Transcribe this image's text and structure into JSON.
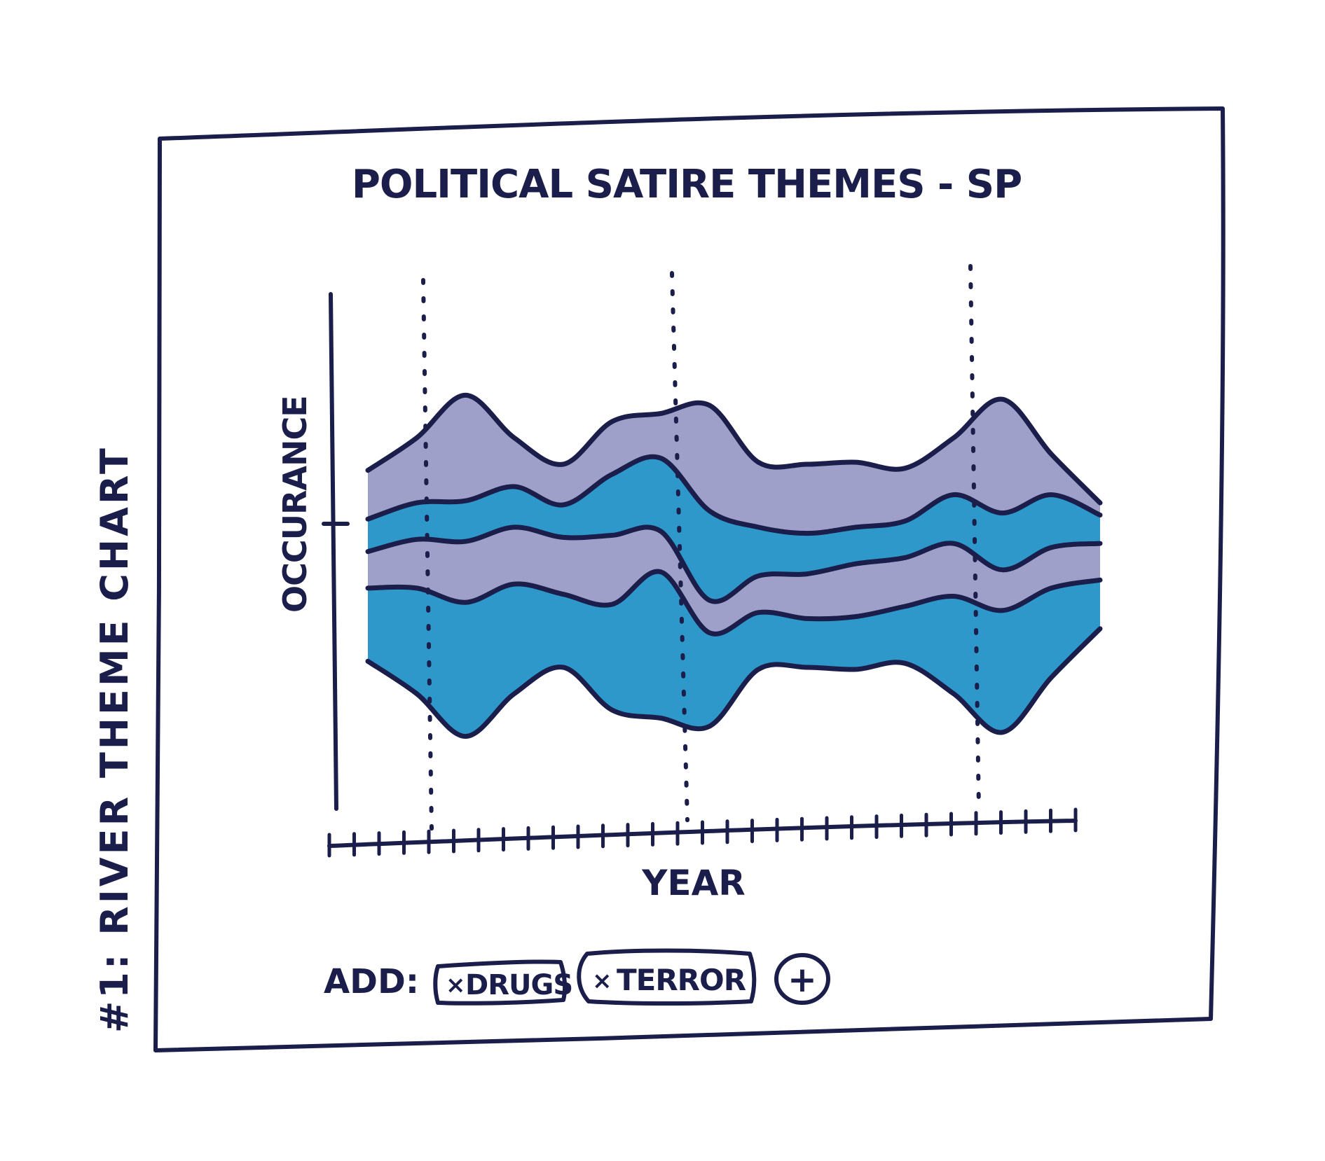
{
  "side_title": "#1: RIVER THEME CHART",
  "chart_title": "POLITICAL SATIRE THEMES - SP",
  "y_label": "OCCURANCE",
  "x_label": "YEAR",
  "add_label": "ADD:",
  "chips": [
    {
      "label": "DRUGS",
      "remove_glyph": "×"
    },
    {
      "label": "TERROR",
      "remove_glyph": "×"
    }
  ],
  "add_button_glyph": "+",
  "colors": {
    "ink": "#1b1e4b",
    "teal": "#1b8fc4",
    "lavender": "#8e8fc0",
    "light": "#aab4d8"
  },
  "chart_data": {
    "type": "area",
    "stacking": "streamgraph",
    "xlabel": "YEAR",
    "ylabel": "OCCURANCE",
    "title": "POLITICAL SATIRE THEMES - SP",
    "x_ticks": 30,
    "highlight_ticks": [
      4,
      14,
      26
    ],
    "x": [
      0,
      2,
      4,
      6,
      8,
      10,
      12,
      14,
      16,
      18,
      20,
      22,
      24,
      26,
      28,
      30
    ],
    "series": [
      {
        "color": "lavender",
        "values": [
          1.2,
          1.6,
          2.6,
          1.2,
          1.0,
          1.3,
          1.1,
          2.6,
          1.6,
          1.7,
          1.6,
          1.3,
          1.4,
          2.8,
          1.0,
          0.3
        ]
      },
      {
        "color": "teal",
        "values": [
          0.8,
          0.9,
          1.0,
          1.0,
          0.8,
          1.5,
          1.8,
          2.2,
          1.2,
          1.0,
          0.9,
          0.9,
          1.2,
          1.4,
          1.3,
          0.7
        ]
      },
      {
        "color": "lavender",
        "values": [
          0.9,
          1.2,
          1.5,
          1.4,
          1.4,
          1.7,
          1.0,
          0.8,
          0.9,
          1.1,
          1.3,
          1.2,
          1.3,
          1.0,
          1.0,
          0.9
        ]
      },
      {
        "color": "teal",
        "values": [
          1.8,
          2.6,
          3.3,
          2.7,
          1.8,
          2.6,
          3.6,
          2.3,
          1.4,
          1.2,
          1.3,
          1.4,
          2.4,
          3.0,
          2.2,
          1.2
        ]
      }
    ]
  }
}
